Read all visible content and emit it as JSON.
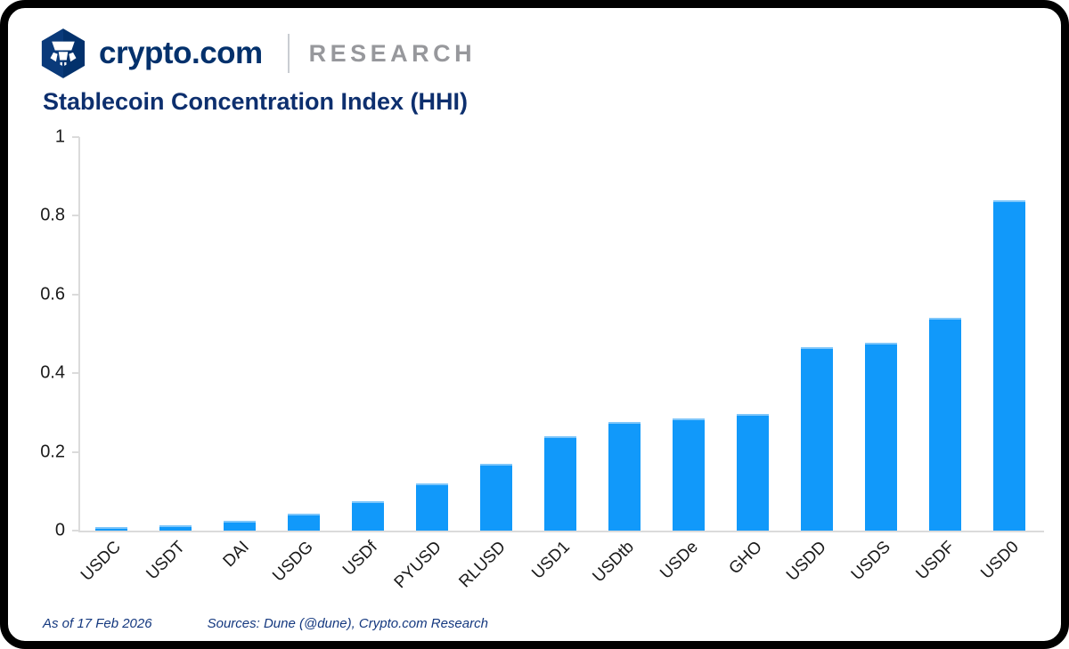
{
  "header": {
    "brand": "crypto.com",
    "suffix": "RESEARCH"
  },
  "title": "Stablecoin Concentration Index (HHI)",
  "chart_data": {
    "type": "bar",
    "title": "Stablecoin Concentration Index (HHI)",
    "categories": [
      "USDC",
      "USDT",
      "DAI",
      "USDG",
      "USDf",
      "PYUSD",
      "RLUSD",
      "USD1",
      "USDtb",
      "USDe",
      "GHO",
      "USDD",
      "USDS",
      "USDF",
      "USD0"
    ],
    "values": [
      0.008,
      0.014,
      0.026,
      0.042,
      0.074,
      0.12,
      0.17,
      0.24,
      0.277,
      0.285,
      0.297,
      0.465,
      0.478,
      0.54,
      0.84
    ],
    "xlabel": "",
    "ylabel": "",
    "ylim": [
      0,
      1
    ],
    "yticks": [
      0,
      0.2,
      0.4,
      0.6,
      0.8,
      1
    ],
    "ytick_labels": [
      "0",
      "0.2",
      "0.4",
      "0.6",
      "0.8",
      "1"
    ],
    "grid": false,
    "legend_position": "none",
    "bar_color": "#1199FA"
  },
  "footer": {
    "as_of": "As of 17 Feb 2026",
    "sources": "Sources: Dune (@dune), Crypto.com Research"
  },
  "colors": {
    "brand_navy": "#03316C",
    "title_navy": "#0D2F6E",
    "research_gray": "#97989C",
    "axis_gray": "#DBDBDB",
    "bar_blue": "#1199FA",
    "footer_blue": "#14387F"
  }
}
